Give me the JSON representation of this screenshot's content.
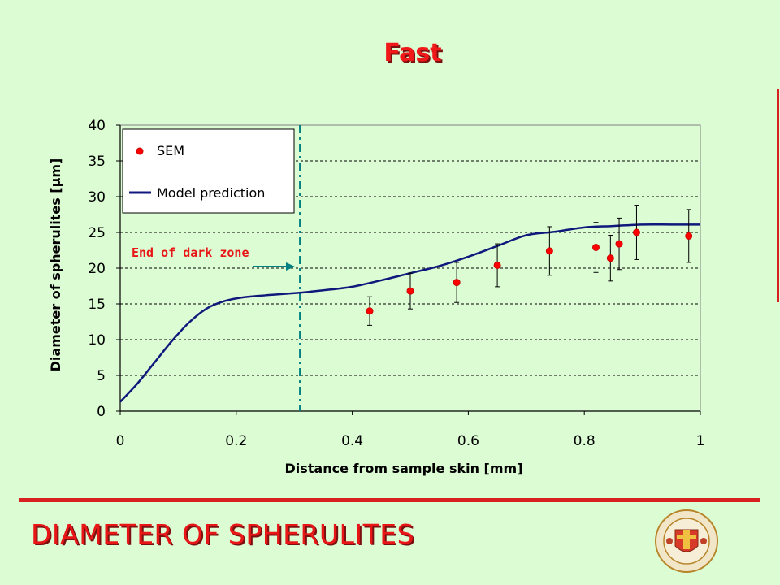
{
  "slide": {
    "title": "Fast",
    "footer": "DIAMETER OF SPHERULITES"
  },
  "colors": {
    "background": "#dcfcd4",
    "accent_red": "#e81616",
    "model_line": "#10187c",
    "marker": "#ff0000",
    "annotation_line": "#008080"
  },
  "chart_data": {
    "type": "scatter",
    "xlabel": "Distance from sample skin [mm]",
    "ylabel": "Diameter of spherulites [μm]",
    "xlim": [
      0,
      1
    ],
    "ylim": [
      0,
      40
    ],
    "x_ticks": [
      "0",
      "0.2",
      "0.4",
      "0.6",
      "0.8",
      "1"
    ],
    "y_ticks": [
      "0",
      "5",
      "10",
      "15",
      "20",
      "25",
      "30",
      "35",
      "40"
    ],
    "grid": "horizontal dotted",
    "legend_placement": "top-left",
    "series": [
      {
        "name": "SEM",
        "kind": "scatter-with-error-bars",
        "points": [
          {
            "x": 0.43,
            "y": 14.0,
            "err_low": 2.0,
            "err_high": 2.0
          },
          {
            "x": 0.5,
            "y": 16.8,
            "err_low": 2.5,
            "err_high": 2.5
          },
          {
            "x": 0.58,
            "y": 18.0,
            "err_low": 2.8,
            "err_high": 2.8
          },
          {
            "x": 0.65,
            "y": 20.4,
            "err_low": 3.0,
            "err_high": 3.0
          },
          {
            "x": 0.74,
            "y": 22.4,
            "err_low": 3.4,
            "err_high": 3.4
          },
          {
            "x": 0.82,
            "y": 22.9,
            "err_low": 3.5,
            "err_high": 3.5
          },
          {
            "x": 0.845,
            "y": 21.4,
            "err_low": 3.2,
            "err_high": 3.2
          },
          {
            "x": 0.86,
            "y": 23.4,
            "err_low": 3.6,
            "err_high": 3.6
          },
          {
            "x": 0.89,
            "y": 25.0,
            "err_low": 3.8,
            "err_high": 3.8
          },
          {
            "x": 0.98,
            "y": 24.5,
            "err_low": 3.7,
            "err_high": 3.7
          }
        ]
      },
      {
        "name": "Model prediction",
        "kind": "line",
        "x": [
          0,
          0.03,
          0.06,
          0.09,
          0.12,
          0.15,
          0.18,
          0.21,
          0.25,
          0.3,
          0.35,
          0.4,
          0.45,
          0.5,
          0.55,
          0.6,
          0.65,
          0.7,
          0.75,
          0.8,
          0.85,
          0.9,
          0.95,
          1.0
        ],
        "y": [
          1.3,
          3.9,
          6.9,
          9.9,
          12.5,
          14.4,
          15.4,
          15.9,
          16.2,
          16.5,
          16.9,
          17.4,
          18.3,
          19.3,
          20.3,
          21.6,
          23.1,
          24.6,
          25.1,
          25.7,
          25.9,
          26.1,
          26.1,
          26.1
        ]
      }
    ],
    "annotations": [
      {
        "text": "End of dark zone",
        "color": "#e81616",
        "marker_x": 0.31,
        "vertical_line": "dash-dot"
      }
    ]
  }
}
